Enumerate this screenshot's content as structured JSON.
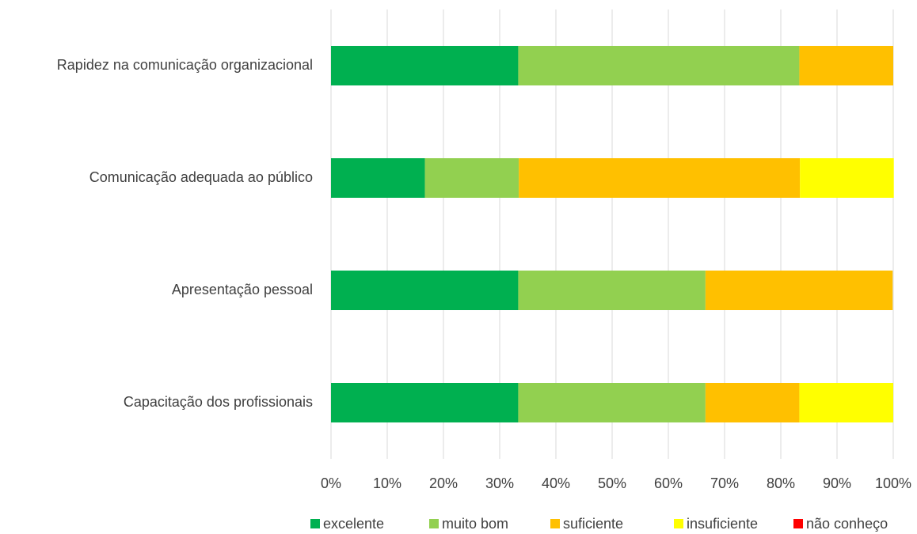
{
  "chart_data": {
    "type": "stacked_bar_horizontal",
    "categories": [
      "Rapidez na comunicação organizacional",
      "Comunicação adequada ao público",
      "Apresentação pessoal",
      "Capacitação dos profissionais"
    ],
    "series": [
      {
        "name": "excelente",
        "color": "#00b050",
        "values": [
          33.3,
          16.7,
          33.3,
          33.3
        ]
      },
      {
        "name": "muito bom",
        "color": "#92d050",
        "values": [
          50,
          16.7,
          33.3,
          33.3
        ]
      },
      {
        "name": "suficiente",
        "color": "#ffc000",
        "values": [
          16.7,
          50,
          33.3,
          16.7
        ]
      },
      {
        "name": "insuficiente",
        "color": "#ffff00",
        "values": [
          0,
          16.7,
          0,
          16.7
        ]
      },
      {
        "name": "não conheço",
        "color": "#ff0000",
        "values": [
          0,
          0,
          0,
          0
        ]
      }
    ],
    "xlim": [
      0,
      100
    ],
    "xticks": [
      {
        "value": 0,
        "label": "0%"
      },
      {
        "value": 10,
        "label": "10%"
      },
      {
        "value": 20,
        "label": "20%"
      },
      {
        "value": 30,
        "label": "30%"
      },
      {
        "value": 40,
        "label": "40%"
      },
      {
        "value": 50,
        "label": "50%"
      },
      {
        "value": 60,
        "label": "60%"
      },
      {
        "value": 70,
        "label": "70%"
      },
      {
        "value": 80,
        "label": "80%"
      },
      {
        "value": 90,
        "label": "90%"
      },
      {
        "value": 100,
        "label": "100%"
      }
    ],
    "grid": true,
    "legend": "bottom"
  }
}
